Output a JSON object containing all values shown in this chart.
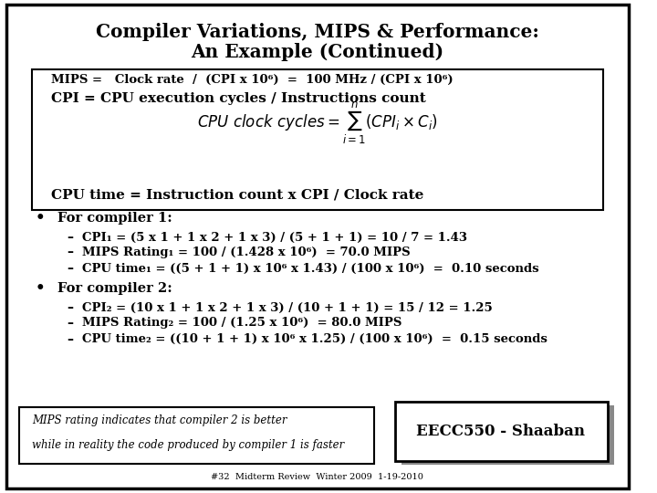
{
  "title_line1": "Compiler Variations, MIPS & Performance:",
  "title_line2": "An Example (Continued)",
  "bg_color": "#ffffff",
  "border_color": "#000000",
  "mips_formula": "MIPS =   Clock rate  /  (CPI x 10⁶)  =  100 MHz / (CPI x 10⁶)",
  "cpi_def": "CPI = CPU execution cycles / Instructions count",
  "cpu_time_def": "CPU time = Instruction count x CPI / Clock rate",
  "compiler1_header": "For compiler 1:",
  "compiler1_line1": "CPI₁ = (5 x 1 + 1 x 2 + 1 x 3) / (5 + 1 + 1) = 10 / 7 = 1.43",
  "compiler1_line2": "MIPS Rating₁ = 100 / (1.428 x 10⁶)  = 70.0 MIPS",
  "compiler1_line3": "CPU time₁ = ((5 + 1 + 1) x 10⁶ x 1.43) / (100 x 10⁶)  =  0.10 seconds",
  "compiler2_header": "For compiler 2:",
  "compiler2_line1": "CPI₂ = (10 x 1 + 1 x 2 + 1 x 3) / (10 + 1 + 1) = 15 / 12 = 1.25",
  "compiler2_line2": "MIPS Rating₂ = 100 / (1.25 x 10⁶)  = 80.0 MIPS",
  "compiler2_line3": "CPU time₂ = ((10 + 1 + 1) x 10⁶ x 1.25) / (100 x 10⁶)  =  0.15 seconds",
  "footer_left1": "MIPS rating indicates that compiler 2 is better",
  "footer_left2": "while in reality the code produced by compiler 1 is faster",
  "footer_right": "EECC550 - Shaaban",
  "footer_bottom": "#32  Midterm Review  Winter 2009  1-19-2010"
}
